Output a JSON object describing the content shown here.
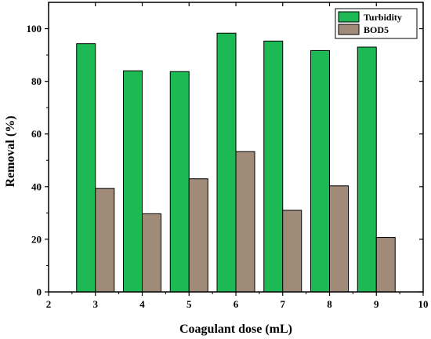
{
  "chart_data": {
    "type": "bar",
    "title": "",
    "xlabel": "Coagulant dose (mL)",
    "ylabel": "Removal (%)",
    "xlim": [
      2,
      10
    ],
    "ylim": [
      0,
      110
    ],
    "xticks": [
      2,
      3,
      4,
      5,
      6,
      7,
      8,
      9,
      10
    ],
    "yticks": [
      0,
      20,
      40,
      60,
      80,
      100
    ],
    "x": [
      3,
      4,
      5,
      6,
      7,
      8,
      9
    ],
    "series": [
      {
        "name": "Turbidity",
        "color": "#1db954",
        "values": [
          94.3,
          84.0,
          83.7,
          98.3,
          95.3,
          91.7,
          93.0
        ]
      },
      {
        "name": "BOD5",
        "color": "#a08a78",
        "values": [
          39.3,
          29.7,
          43.0,
          53.3,
          31.0,
          40.3,
          20.7
        ]
      }
    ],
    "legend_position": "top-right",
    "grid": false
  }
}
